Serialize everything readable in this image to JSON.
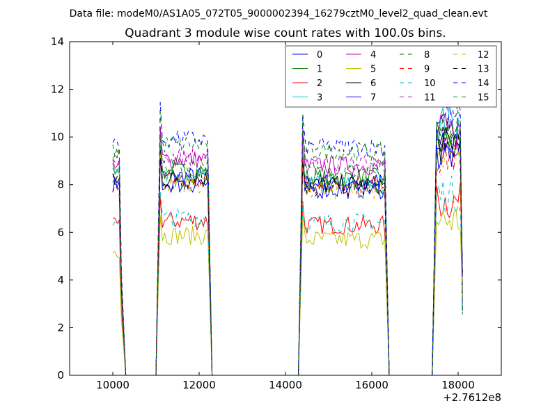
{
  "suptitle": "Data file: modeM0/AS1A05_072T05_9000002394_16279cztM0_level2_quad_clean.evt",
  "chart_data": {
    "type": "line",
    "title": "Quadrant 3 module wise count rates with 100.0s bins.",
    "xlabel": "",
    "ylabel": "",
    "xlim": [
      9000,
      19000
    ],
    "ylim": [
      0,
      14
    ],
    "x_ticks": [
      10000,
      12000,
      14000,
      16000,
      18000
    ],
    "y_ticks": [
      0,
      2,
      4,
      6,
      8,
      10,
      12,
      14
    ],
    "x_tick_labels": [
      "10000",
      "12000",
      "14000",
      "16000",
      "18000"
    ],
    "y_tick_labels": [
      "0",
      "2",
      "4",
      "6",
      "8",
      "10",
      "12",
      "14"
    ],
    "x_offset_label": "+2.7612e8",
    "legend_position": "top-right",
    "legend_columns": 4,
    "segments": [
      {
        "start": 10000,
        "end": 10200,
        "edge": 10300
      },
      {
        "start": 11100,
        "end": 12200,
        "edge": 12300
      },
      {
        "start": 14400,
        "end": 16300,
        "edge": 16400
      },
      {
        "start": 17500,
        "end": 18100,
        "edge": 18100
      }
    ],
    "series": [
      {
        "name": "0",
        "color": "#0000ff",
        "dash": false,
        "level": 8.1,
        "s4level": 9.5,
        "start_level": 8.0
      },
      {
        "name": "1",
        "color": "#008000",
        "dash": false,
        "level": 8.3,
        "s4level": 9.8,
        "start_level": 8.7
      },
      {
        "name": "2",
        "color": "#ff0000",
        "dash": false,
        "level": 6.3,
        "s4level": 7.3,
        "start_level": 6.3
      },
      {
        "name": "3",
        "color": "#00bfbf",
        "dash": false,
        "level": 8.0,
        "s4level": 10.6,
        "start_level": 8.8
      },
      {
        "name": "4",
        "color": "#bf00bf",
        "dash": false,
        "level": 8.8,
        "s4level": 10.2,
        "start_level": 8.9
      },
      {
        "name": "5",
        "color": "#bfbf00",
        "dash": false,
        "level": 5.7,
        "s4level": 6.5,
        "start_level": 5.2
      },
      {
        "name": "6",
        "color": "#000000",
        "dash": false,
        "level": 8.0,
        "s4level": 9.6,
        "start_level": 8.2
      },
      {
        "name": "7",
        "color": "#0000ff",
        "dash": false,
        "level": 7.8,
        "s4level": 9.3,
        "start_level": 8.0
      },
      {
        "name": "8",
        "color": "#008000",
        "dash": true,
        "level": 8.6,
        "s4level": 9.9,
        "start_level": 9.3
      },
      {
        "name": "9",
        "color": "#ff0000",
        "dash": true,
        "level": 8.0,
        "s4level": 9.2,
        "start_level": 7.8
      },
      {
        "name": "10",
        "color": "#00bfbf",
        "dash": true,
        "level": 6.4,
        "s4level": 7.6,
        "start_level": 6.5
      },
      {
        "name": "11",
        "color": "#bf00bf",
        "dash": true,
        "level": 8.9,
        "s4level": 10.1,
        "start_level": 9.0
      },
      {
        "name": "12",
        "color": "#bfbf00",
        "dash": true,
        "level": 7.8,
        "s4level": 9.0,
        "start_level": 8.7
      },
      {
        "name": "13",
        "color": "#000000",
        "dash": true,
        "level": 7.9,
        "s4level": 10.0,
        "start_level": 8.2
      },
      {
        "name": "14",
        "color": "#0000ff",
        "dash": true,
        "level": 9.6,
        "s4level": 10.9,
        "start_level": 9.8
      },
      {
        "name": "15",
        "color": "#008000",
        "dash": true,
        "level": 9.4,
        "s4level": 10.5,
        "start_level": 9.4
      }
    ]
  }
}
